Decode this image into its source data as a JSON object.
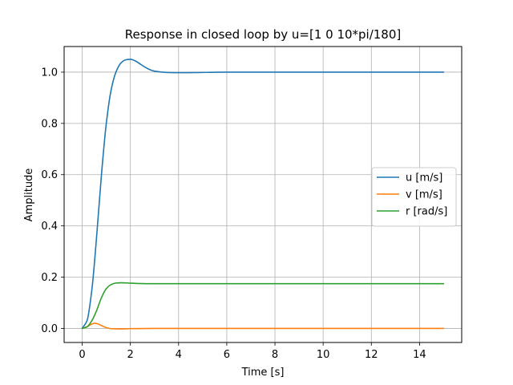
{
  "chart_data": {
    "type": "line",
    "title": "Response in closed loop by u=[1 0 10*pi/180]",
    "xlabel": "Time [s]",
    "ylabel": "Amplitude",
    "xlim": [
      -0.75,
      15.75
    ],
    "ylim": [
      -0.055,
      1.1
    ],
    "xticks": [
      0,
      2,
      4,
      6,
      8,
      10,
      12,
      14
    ],
    "yticks": [
      0.0,
      0.2,
      0.4,
      0.6,
      0.8,
      1.0
    ],
    "xtick_labels": [
      "0",
      "2",
      "4",
      "6",
      "8",
      "10",
      "12",
      "14"
    ],
    "ytick_labels": [
      "0.0",
      "0.2",
      "0.4",
      "0.6",
      "0.8",
      "1.0"
    ],
    "grid": true,
    "legend_position": "center-right",
    "series": [
      {
        "name": "u [m/s]",
        "color": "#1f77b4",
        "x": [
          0,
          0.2,
          0.4,
          0.6,
          0.8,
          1.0,
          1.2,
          1.4,
          1.6,
          1.8,
          2.0,
          2.2,
          2.4,
          2.6,
          2.8,
          3.0,
          3.5,
          4.0,
          5.0,
          6.0,
          8.0,
          10.0,
          12.0,
          15.0
        ],
        "y": [
          0,
          0.03,
          0.15,
          0.36,
          0.6,
          0.8,
          0.93,
          1.0,
          1.035,
          1.048,
          1.05,
          1.044,
          1.032,
          1.02,
          1.01,
          1.004,
          0.999,
          0.998,
          0.999,
          1.0,
          1.0,
          1.0,
          1.0,
          1.0
        ]
      },
      {
        "name": "v [m/s]",
        "color": "#ff7f0e",
        "x": [
          0,
          0.2,
          0.4,
          0.5,
          0.6,
          0.8,
          1.0,
          1.2,
          1.5,
          2.0,
          3.0,
          5.0,
          10.0,
          15.0
        ],
        "y": [
          0,
          0.006,
          0.017,
          0.02,
          0.019,
          0.011,
          0.003,
          -0.001,
          -0.002,
          -0.001,
          0,
          0,
          0,
          0
        ]
      },
      {
        "name": "r [rad/s]",
        "color": "#2ca02c",
        "x": [
          0,
          0.2,
          0.4,
          0.6,
          0.8,
          1.0,
          1.2,
          1.4,
          1.6,
          1.8,
          2.0,
          2.5,
          3.0,
          4.0,
          6.0,
          10.0,
          15.0
        ],
        "y": [
          0,
          0.006,
          0.03,
          0.07,
          0.12,
          0.155,
          0.171,
          0.177,
          0.178,
          0.1775,
          0.1765,
          0.175,
          0.1745,
          0.1745,
          0.1745,
          0.1745,
          0.1745
        ]
      }
    ]
  }
}
